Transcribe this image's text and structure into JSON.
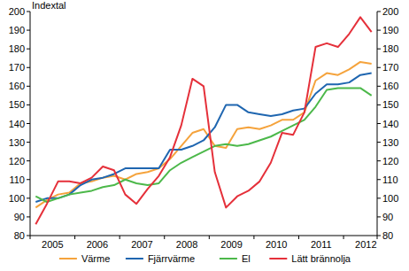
{
  "chart_data": {
    "type": "line",
    "y_label": "Indextal",
    "categories": [
      "2005",
      null,
      null,
      null,
      "2006",
      null,
      null,
      null,
      "2007",
      null,
      null,
      null,
      "2008",
      null,
      null,
      null,
      "2009",
      null,
      null,
      null,
      "2010",
      null,
      null,
      null,
      "2011",
      null,
      null,
      null,
      "2012",
      null,
      null
    ],
    "series": [
      {
        "name": "Värme",
        "color": "#f5a33c",
        "values": [
          95,
          99,
          102,
          103,
          108,
          109,
          111,
          112,
          110,
          113,
          114,
          116,
          121,
          128,
          135,
          137,
          128,
          127,
          137,
          138,
          137,
          139,
          142,
          142,
          146,
          163,
          167,
          166,
          169,
          173,
          172
        ]
      },
      {
        "name": "Fjärrvärme",
        "color": "#1f66b0",
        "values": [
          98,
          100,
          100,
          102,
          107,
          110,
          111,
          113,
          116,
          116,
          116,
          116,
          126,
          126,
          128,
          131,
          138,
          150,
          150,
          146,
          145,
          144,
          145,
          147,
          148,
          156,
          161,
          161,
          162,
          166,
          167
        ]
      },
      {
        "name": "El",
        "color": "#4cb84a",
        "values": [
          101,
          98,
          100,
          102,
          103,
          104,
          106,
          107,
          110,
          108,
          107,
          108,
          115,
          119,
          122,
          125,
          128,
          129,
          128,
          129,
          131,
          133,
          136,
          139,
          142,
          149,
          158,
          159,
          159,
          159,
          155
        ]
      },
      {
        "name": "Lätt brännolja",
        "color": "#e5303a",
        "values": [
          86,
          97,
          109,
          109,
          108,
          111,
          117,
          115,
          102,
          97,
          105,
          112,
          122,
          139,
          164,
          160,
          114,
          95,
          101,
          104,
          109,
          119,
          135,
          134,
          146,
          181,
          183,
          181,
          188,
          197,
          189
        ]
      }
    ],
    "ylim": [
      80,
      200
    ],
    "yticks": [
      80,
      90,
      100,
      110,
      120,
      130,
      140,
      150,
      160,
      170,
      180,
      190,
      200
    ],
    "grid": false,
    "legend": "bottom"
  }
}
